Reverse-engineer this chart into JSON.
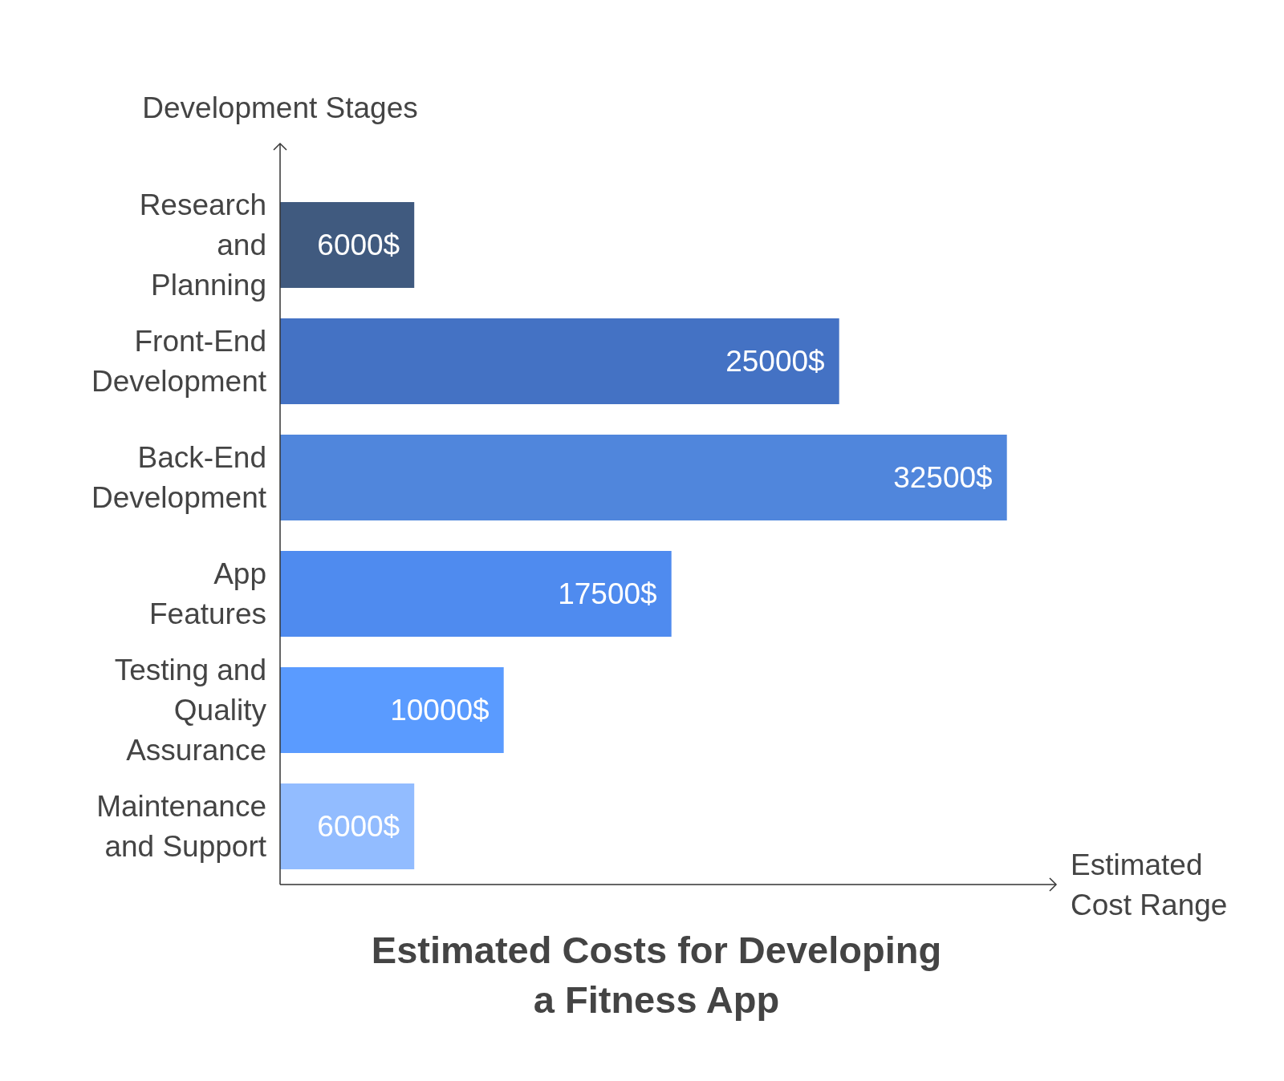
{
  "chart_data": {
    "type": "bar",
    "orientation": "horizontal",
    "title": "Estimated Costs for Developing a Fitness App",
    "xlabel": "Estimated Cost Range",
    "ylabel": "Development Stages",
    "categories": [
      "Research and Planning",
      "Front-End Development",
      "Back-End Development",
      "App Features",
      "Testing and Quality Assurance",
      "Maintenance and Support"
    ],
    "values": [
      6000,
      25000,
      32500,
      17500,
      10000,
      6000
    ],
    "colors": [
      "#405a7f",
      "#4472c4",
      "#5086dc",
      "#4f8bef",
      "#5a9bff",
      "#92bcff"
    ],
    "value_labels": [
      "6000$",
      "25000$",
      "32500$",
      "17500$",
      "10000$",
      "6000$"
    ],
    "xlim": [
      0,
      34700
    ]
  }
}
